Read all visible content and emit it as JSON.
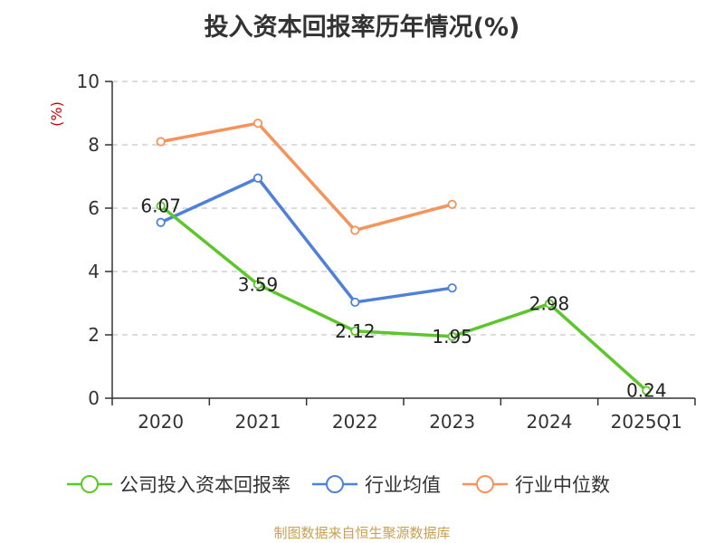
{
  "title": "投入资本回报率历年情况(%)",
  "ylabel": "(%)",
  "source": "制图数据来自恒生聚源数据库",
  "colors": {
    "company": "#5cc62a",
    "average": "#4f81d9",
    "median": "#f5935a",
    "axis_label": "#cc0000",
    "source": "#c8a050"
  },
  "chart_data": {
    "type": "line",
    "title": "投入资本回报率历年情况(%)",
    "xlabel": "",
    "ylabel": "(%)",
    "categories": [
      "2020",
      "2021",
      "2022",
      "2023",
      "2024",
      "2025Q1"
    ],
    "ylim": [
      0,
      10
    ],
    "yticks": [
      0,
      2,
      4,
      6,
      8,
      10
    ],
    "grid": true,
    "legend": "bottom",
    "series": [
      {
        "name": "公司投入资本回报率",
        "color": "#5cc62a",
        "values": [
          6.07,
          3.59,
          2.12,
          1.95,
          2.98,
          0.24
        ],
        "labels": [
          "6.07",
          "3.59",
          "2.12",
          "1.95",
          "2.98",
          "0.24"
        ]
      },
      {
        "name": "行业均值",
        "color": "#4f81d9",
        "values": [
          5.55,
          6.95,
          3.03,
          3.48,
          null,
          null
        ]
      },
      {
        "name": "行业中位数",
        "color": "#f5935a",
        "values": [
          8.1,
          8.68,
          5.3,
          6.12,
          null,
          null
        ]
      }
    ]
  }
}
